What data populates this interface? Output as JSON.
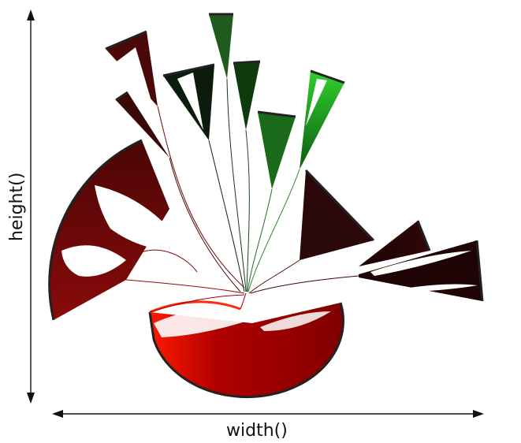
{
  "labels": {
    "width": "width()",
    "height": "height()"
  },
  "colors": {
    "arrow": "#111111",
    "red_bright": "#ff1a00",
    "red_dark": "#7a0000",
    "maroon": "#3a0808",
    "green_bright": "#22cc22",
    "green_dark": "#0d3a0d",
    "black_green": "#0a1a0a"
  }
}
